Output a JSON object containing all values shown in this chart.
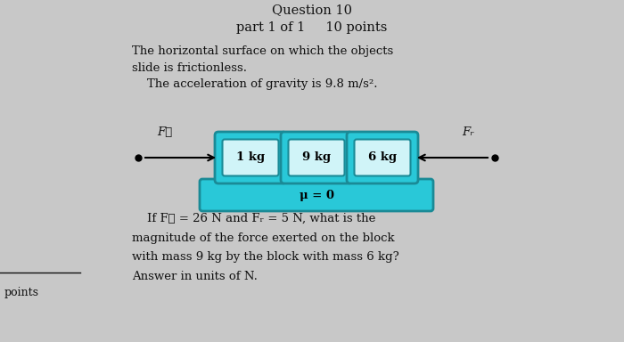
{
  "bg_color": "#c8c8c8",
  "title_text": "Question 10",
  "subtitle_text": "part 1 of 1     10 points",
  "paragraph1_line1": "The horizontal surface on which the objects",
  "paragraph1_line2": "slide is frictionless.",
  "paragraph1_line3": "    The acceleration of gravity is 9.8 m/s².",
  "question_text_line1": "    If Fℓ = 26 N and Fᵣ = 5 N, what is the",
  "question_text_line2": "magnitude of the force exerted on the block",
  "question_text_line3": "with mass 9 kg by the block with mass 6 kg?",
  "question_text_line4": "Answer in units of N.",
  "box_color_outer": "#29c8d8",
  "box_color_inner": "#d0f4f8",
  "box_border": "#1a8a96",
  "platform_color": "#29c8d8",
  "platform_border": "#1a8a96",
  "labels": [
    "1 kg",
    "9 kg",
    "6 kg"
  ],
  "mu_label": "μ = 0",
  "Fl_label": "Fℓ",
  "Fr_label": "Fᵣ",
  "left_text": "points",
  "font_color": "#111111",
  "title_visible": false
}
